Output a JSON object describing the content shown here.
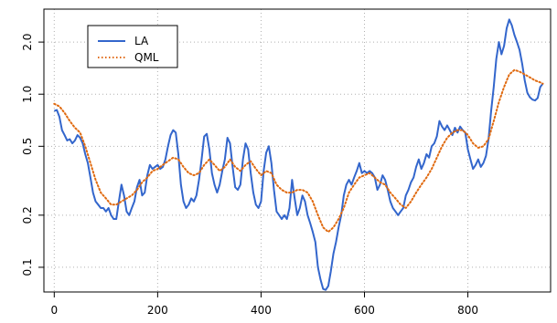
{
  "chart_data": {
    "type": "line",
    "title": "",
    "xlabel": "",
    "ylabel": "",
    "xlim": [
      -20,
      960
    ],
    "ylim": [
      0.072,
      3.1
    ],
    "y_scale": "log",
    "grid": true,
    "legend_position": "top-left",
    "x_ticks": [
      0,
      200,
      400,
      600,
      800
    ],
    "x_tick_labels": [
      "0",
      "200",
      "400",
      "600",
      "800"
    ],
    "y_ticks": [
      0.1,
      0.2,
      0.5,
      1.0,
      2.0
    ],
    "y_tick_labels": [
      "0.1",
      "0.2",
      "0.5",
      "1.0",
      "2.0"
    ],
    "series": [
      {
        "name": "LA",
        "color": "#3366cc",
        "style": "solid",
        "points": [
          [
            0,
            0.8
          ],
          [
            5,
            0.81
          ],
          [
            10,
            0.74
          ],
          [
            15,
            0.62
          ],
          [
            20,
            0.58
          ],
          [
            25,
            0.54
          ],
          [
            30,
            0.55
          ],
          [
            35,
            0.52
          ],
          [
            40,
            0.54
          ],
          [
            45,
            0.58
          ],
          [
            50,
            0.56
          ],
          [
            55,
            0.52
          ],
          [
            60,
            0.45
          ],
          [
            65,
            0.4
          ],
          [
            70,
            0.33
          ],
          [
            75,
            0.27
          ],
          [
            80,
            0.24
          ],
          [
            85,
            0.23
          ],
          [
            90,
            0.22
          ],
          [
            95,
            0.22
          ],
          [
            100,
            0.21
          ],
          [
            105,
            0.22
          ],
          [
            110,
            0.2
          ],
          [
            115,
            0.19
          ],
          [
            120,
            0.19
          ],
          [
            125,
            0.24
          ],
          [
            130,
            0.3
          ],
          [
            135,
            0.26
          ],
          [
            140,
            0.21
          ],
          [
            145,
            0.2
          ],
          [
            150,
            0.22
          ],
          [
            155,
            0.24
          ],
          [
            160,
            0.29
          ],
          [
            165,
            0.32
          ],
          [
            170,
            0.26
          ],
          [
            175,
            0.27
          ],
          [
            180,
            0.34
          ],
          [
            185,
            0.39
          ],
          [
            190,
            0.37
          ],
          [
            195,
            0.38
          ],
          [
            200,
            0.39
          ],
          [
            205,
            0.37
          ],
          [
            210,
            0.38
          ],
          [
            215,
            0.42
          ],
          [
            220,
            0.5
          ],
          [
            225,
            0.58
          ],
          [
            230,
            0.62
          ],
          [
            235,
            0.6
          ],
          [
            240,
            0.45
          ],
          [
            245,
            0.3
          ],
          [
            250,
            0.24
          ],
          [
            255,
            0.22
          ],
          [
            260,
            0.23
          ],
          [
            265,
            0.25
          ],
          [
            270,
            0.24
          ],
          [
            275,
            0.26
          ],
          [
            280,
            0.32
          ],
          [
            285,
            0.42
          ],
          [
            290,
            0.57
          ],
          [
            295,
            0.59
          ],
          [
            300,
            0.48
          ],
          [
            305,
            0.35
          ],
          [
            310,
            0.3
          ],
          [
            315,
            0.27
          ],
          [
            320,
            0.3
          ],
          [
            325,
            0.36
          ],
          [
            330,
            0.42
          ],
          [
            335,
            0.56
          ],
          [
            340,
            0.52
          ],
          [
            345,
            0.38
          ],
          [
            350,
            0.29
          ],
          [
            355,
            0.28
          ],
          [
            360,
            0.3
          ],
          [
            365,
            0.42
          ],
          [
            370,
            0.52
          ],
          [
            375,
            0.48
          ],
          [
            380,
            0.35
          ],
          [
            385,
            0.27
          ],
          [
            390,
            0.23
          ],
          [
            395,
            0.22
          ],
          [
            400,
            0.24
          ],
          [
            405,
            0.36
          ],
          [
            410,
            0.46
          ],
          [
            415,
            0.5
          ],
          [
            420,
            0.4
          ],
          [
            425,
            0.28
          ],
          [
            430,
            0.21
          ],
          [
            435,
            0.2
          ],
          [
            440,
            0.19
          ],
          [
            445,
            0.2
          ],
          [
            450,
            0.19
          ],
          [
            455,
            0.22
          ],
          [
            460,
            0.32
          ],
          [
            465,
            0.25
          ],
          [
            470,
            0.2
          ],
          [
            475,
            0.22
          ],
          [
            480,
            0.26
          ],
          [
            485,
            0.24
          ],
          [
            490,
            0.2
          ],
          [
            495,
            0.18
          ],
          [
            500,
            0.16
          ],
          [
            505,
            0.14
          ],
          [
            510,
            0.1
          ],
          [
            515,
            0.085
          ],
          [
            520,
            0.075
          ],
          [
            525,
            0.074
          ],
          [
            530,
            0.078
          ],
          [
            535,
            0.095
          ],
          [
            540,
            0.12
          ],
          [
            545,
            0.14
          ],
          [
            550,
            0.17
          ],
          [
            555,
            0.2
          ],
          [
            560,
            0.26
          ],
          [
            565,
            0.3
          ],
          [
            570,
            0.32
          ],
          [
            575,
            0.3
          ],
          [
            580,
            0.33
          ],
          [
            585,
            0.36
          ],
          [
            590,
            0.4
          ],
          [
            595,
            0.35
          ],
          [
            600,
            0.36
          ],
          [
            605,
            0.35
          ],
          [
            610,
            0.36
          ],
          [
            615,
            0.35
          ],
          [
            620,
            0.33
          ],
          [
            625,
            0.28
          ],
          [
            630,
            0.3
          ],
          [
            635,
            0.34
          ],
          [
            640,
            0.32
          ],
          [
            645,
            0.28
          ],
          [
            650,
            0.24
          ],
          [
            655,
            0.22
          ],
          [
            660,
            0.21
          ],
          [
            665,
            0.2
          ],
          [
            670,
            0.21
          ],
          [
            675,
            0.22
          ],
          [
            680,
            0.26
          ],
          [
            685,
            0.28
          ],
          [
            690,
            0.31
          ],
          [
            695,
            0.33
          ],
          [
            700,
            0.38
          ],
          [
            705,
            0.42
          ],
          [
            710,
            0.37
          ],
          [
            715,
            0.4
          ],
          [
            720,
            0.45
          ],
          [
            725,
            0.43
          ],
          [
            730,
            0.5
          ],
          [
            735,
            0.52
          ],
          [
            740,
            0.57
          ],
          [
            745,
            0.7
          ],
          [
            750,
            0.65
          ],
          [
            755,
            0.62
          ],
          [
            760,
            0.66
          ],
          [
            765,
            0.62
          ],
          [
            770,
            0.58
          ],
          [
            775,
            0.64
          ],
          [
            780,
            0.6
          ],
          [
            785,
            0.65
          ],
          [
            790,
            0.62
          ],
          [
            795,
            0.6
          ],
          [
            800,
            0.48
          ],
          [
            805,
            0.42
          ],
          [
            810,
            0.37
          ],
          [
            815,
            0.39
          ],
          [
            820,
            0.42
          ],
          [
            825,
            0.38
          ],
          [
            830,
            0.4
          ],
          [
            835,
            0.44
          ],
          [
            840,
            0.55
          ],
          [
            845,
            0.8
          ],
          [
            850,
            1.1
          ],
          [
            855,
            1.6
          ],
          [
            860,
            2.0
          ],
          [
            865,
            1.7
          ],
          [
            870,
            1.9
          ],
          [
            875,
            2.4
          ],
          [
            880,
            2.7
          ],
          [
            885,
            2.5
          ],
          [
            890,
            2.2
          ],
          [
            895,
            2.0
          ],
          [
            900,
            1.8
          ],
          [
            905,
            1.5
          ],
          [
            910,
            1.2
          ],
          [
            915,
            1.02
          ],
          [
            920,
            0.96
          ],
          [
            925,
            0.93
          ],
          [
            930,
            0.92
          ],
          [
            935,
            0.95
          ],
          [
            940,
            1.1
          ],
          [
            945,
            1.15
          ]
        ]
      },
      {
        "name": "QML",
        "color": "#e06a10",
        "style": "dotted",
        "points": [
          [
            0,
            0.88
          ],
          [
            10,
            0.85
          ],
          [
            20,
            0.78
          ],
          [
            30,
            0.7
          ],
          [
            40,
            0.64
          ],
          [
            50,
            0.6
          ],
          [
            60,
            0.5
          ],
          [
            70,
            0.4
          ],
          [
            80,
            0.32
          ],
          [
            90,
            0.27
          ],
          [
            100,
            0.25
          ],
          [
            110,
            0.23
          ],
          [
            120,
            0.23
          ],
          [
            130,
            0.24
          ],
          [
            140,
            0.25
          ],
          [
            150,
            0.26
          ],
          [
            160,
            0.28
          ],
          [
            170,
            0.31
          ],
          [
            180,
            0.33
          ],
          [
            190,
            0.36
          ],
          [
            200,
            0.37
          ],
          [
            210,
            0.39
          ],
          [
            220,
            0.41
          ],
          [
            230,
            0.43
          ],
          [
            240,
            0.42
          ],
          [
            250,
            0.38
          ],
          [
            260,
            0.35
          ],
          [
            270,
            0.34
          ],
          [
            280,
            0.35
          ],
          [
            290,
            0.39
          ],
          [
            300,
            0.42
          ],
          [
            310,
            0.39
          ],
          [
            320,
            0.36
          ],
          [
            330,
            0.38
          ],
          [
            340,
            0.42
          ],
          [
            350,
            0.38
          ],
          [
            360,
            0.36
          ],
          [
            370,
            0.39
          ],
          [
            380,
            0.41
          ],
          [
            390,
            0.37
          ],
          [
            400,
            0.34
          ],
          [
            410,
            0.36
          ],
          [
            420,
            0.35
          ],
          [
            430,
            0.3
          ],
          [
            440,
            0.28
          ],
          [
            450,
            0.27
          ],
          [
            460,
            0.27
          ],
          [
            470,
            0.28
          ],
          [
            480,
            0.28
          ],
          [
            490,
            0.27
          ],
          [
            500,
            0.24
          ],
          [
            510,
            0.2
          ],
          [
            520,
            0.17
          ],
          [
            530,
            0.16
          ],
          [
            540,
            0.17
          ],
          [
            550,
            0.19
          ],
          [
            560,
            0.22
          ],
          [
            570,
            0.27
          ],
          [
            580,
            0.3
          ],
          [
            590,
            0.33
          ],
          [
            600,
            0.34
          ],
          [
            610,
            0.35
          ],
          [
            620,
            0.33
          ],
          [
            630,
            0.31
          ],
          [
            640,
            0.3
          ],
          [
            650,
            0.27
          ],
          [
            660,
            0.25
          ],
          [
            670,
            0.23
          ],
          [
            680,
            0.22
          ],
          [
            690,
            0.24
          ],
          [
            700,
            0.27
          ],
          [
            710,
            0.3
          ],
          [
            720,
            0.33
          ],
          [
            730,
            0.37
          ],
          [
            740,
            0.43
          ],
          [
            750,
            0.5
          ],
          [
            760,
            0.56
          ],
          [
            770,
            0.6
          ],
          [
            780,
            0.62
          ],
          [
            790,
            0.62
          ],
          [
            800,
            0.58
          ],
          [
            810,
            0.52
          ],
          [
            820,
            0.49
          ],
          [
            830,
            0.5
          ],
          [
            840,
            0.55
          ],
          [
            850,
            0.7
          ],
          [
            860,
            0.9
          ],
          [
            870,
            1.1
          ],
          [
            880,
            1.3
          ],
          [
            890,
            1.38
          ],
          [
            900,
            1.35
          ],
          [
            910,
            1.3
          ],
          [
            920,
            1.25
          ],
          [
            930,
            1.2
          ],
          [
            940,
            1.17
          ],
          [
            945,
            1.15
          ]
        ]
      }
    ]
  }
}
